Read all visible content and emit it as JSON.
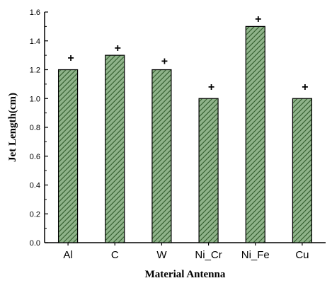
{
  "chart_data": {
    "type": "bar",
    "categories": [
      "Al",
      "C",
      "W",
      "Ni_Cr",
      "Ni_Fe",
      "Cu"
    ],
    "values": [
      1.2,
      1.3,
      1.2,
      1.0,
      1.5,
      1.0
    ],
    "marker_values": [
      1.28,
      1.35,
      1.26,
      1.08,
      1.55,
      1.08
    ],
    "marker_symbol": "+",
    "xlabel": "Material Antenna",
    "ylabel": "Jet Length(cm)",
    "ylim": [
      0.0,
      1.6
    ],
    "yticks": [
      "0.0",
      "0.2",
      "0.4",
      "0.6",
      "0.8",
      "1.0",
      "1.2",
      "1.4",
      "1.6"
    ],
    "bar_fill": "#8fb38a",
    "bar_hatch": "#2f5a2a",
    "grid": false
  }
}
